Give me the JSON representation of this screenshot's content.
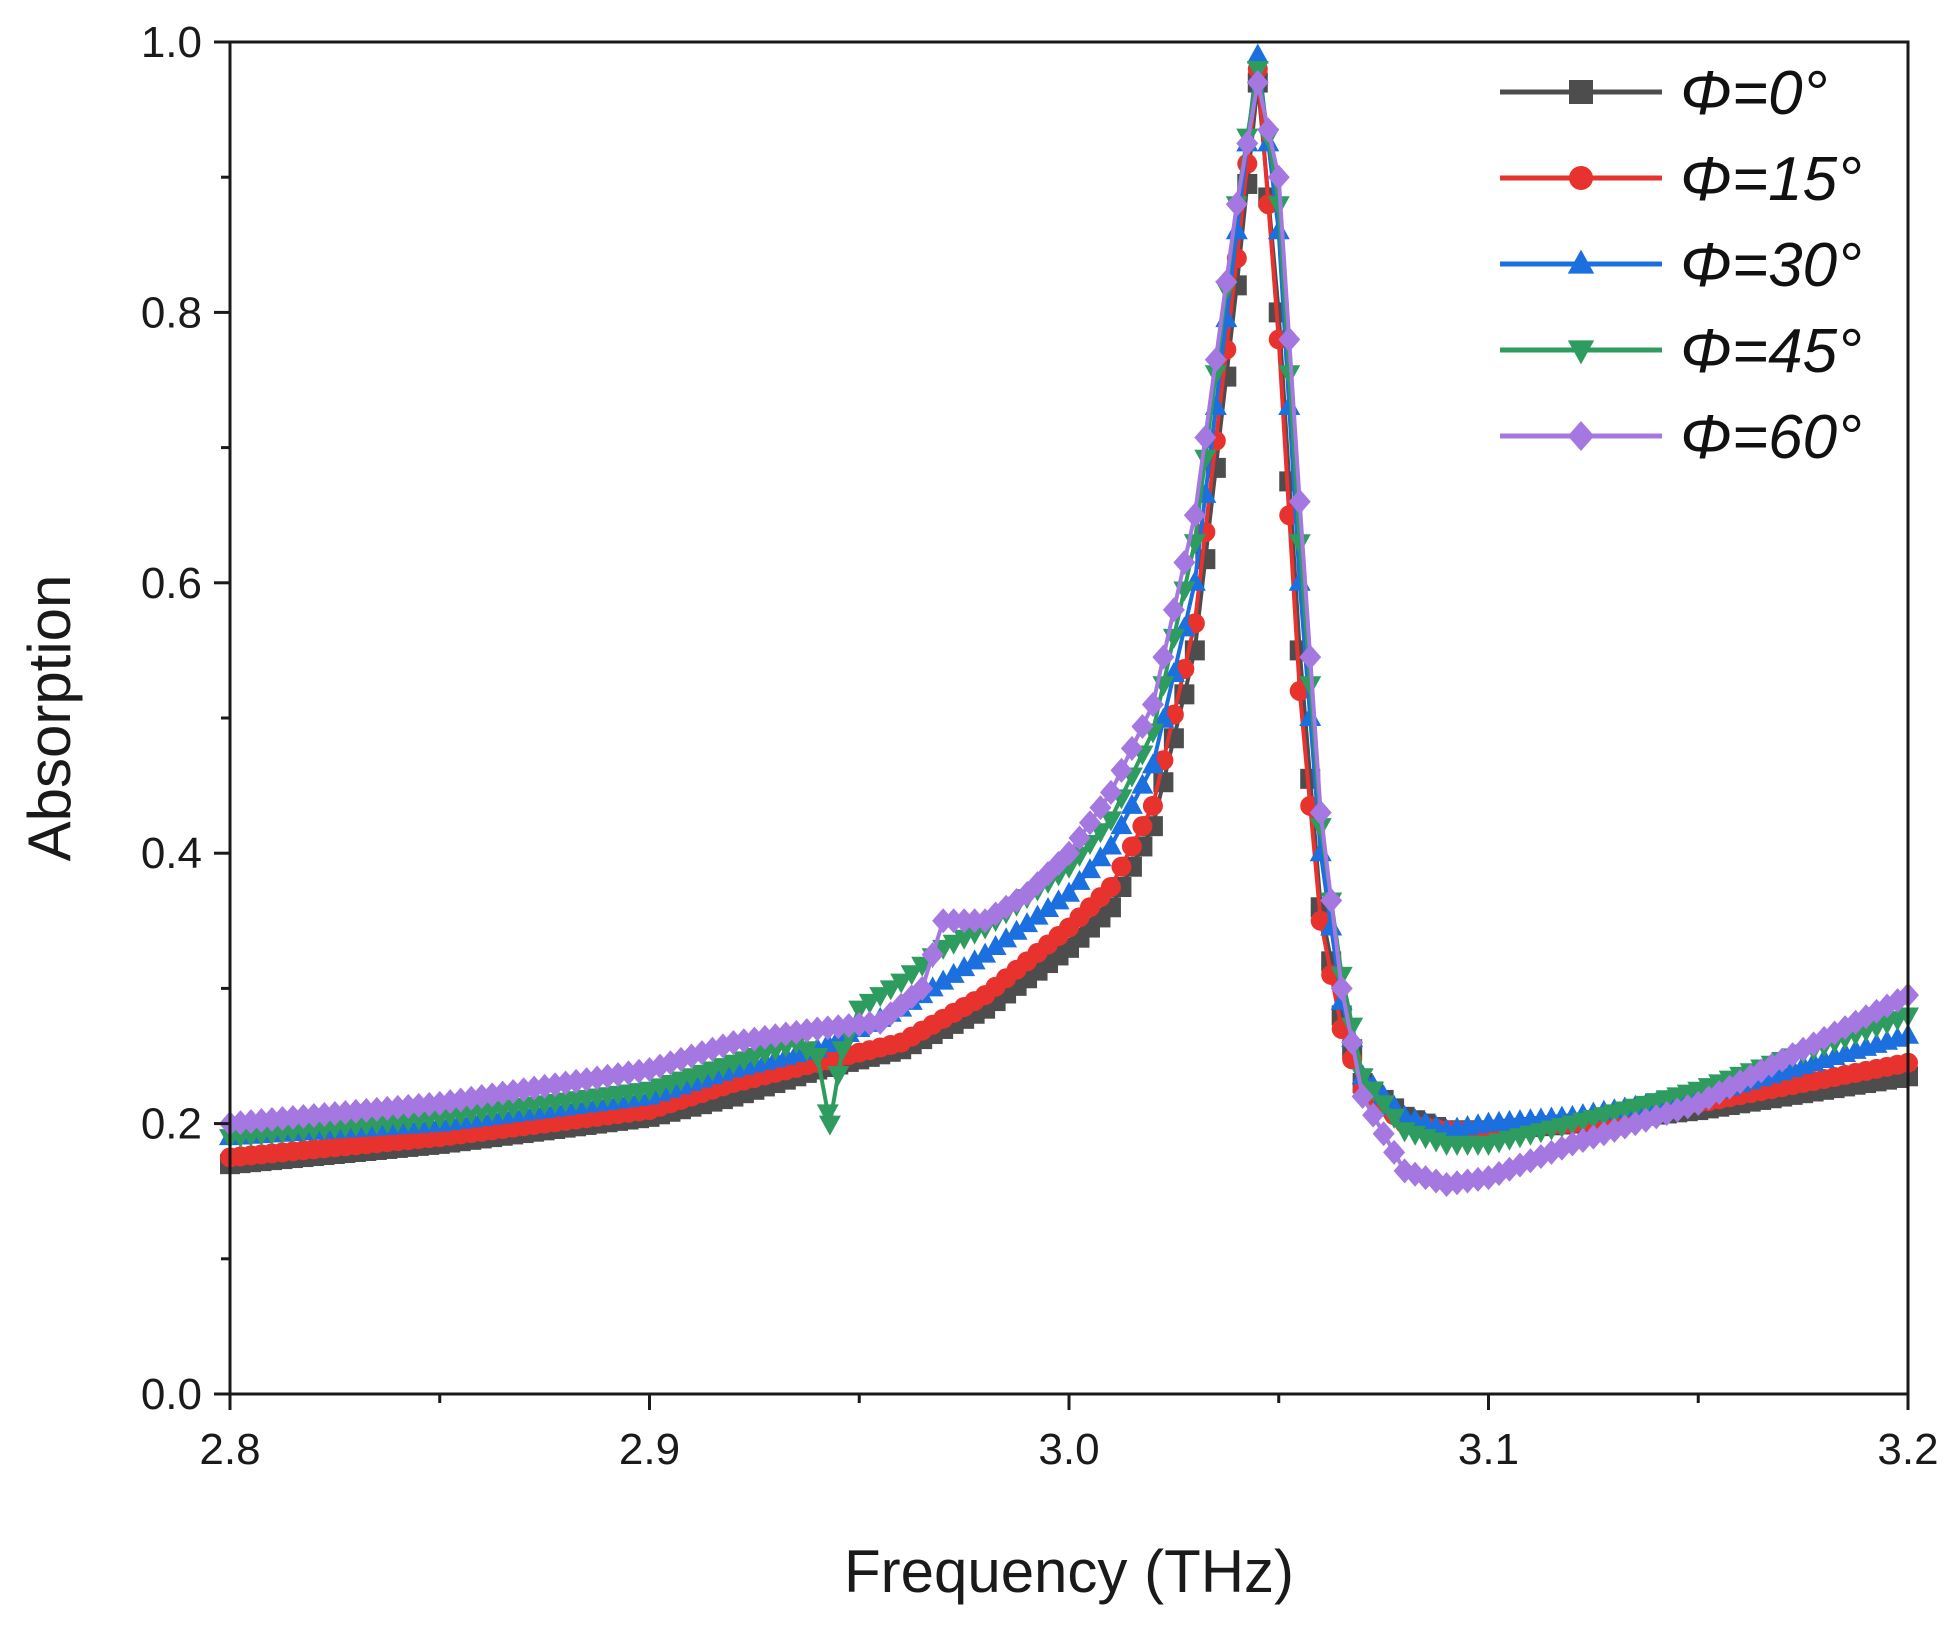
{
  "chart_data": {
    "type": "line",
    "title": "",
    "xlabel": "Frequency (THz)",
    "ylabel": "Absorption",
    "xlim": [
      2.8,
      3.2
    ],
    "ylim": [
      0.0,
      1.0
    ],
    "x_ticks": [
      "2.8",
      "2.9",
      "3.0",
      "3.1",
      "3.2"
    ],
    "y_ticks": [
      "0.0",
      "0.2",
      "0.4",
      "0.6",
      "0.8",
      "1.0"
    ],
    "legend_position": "top-right",
    "series": [
      {
        "name": "Φ=0°",
        "color": "#4d4d4d",
        "marker": "square",
        "points": [
          [
            2.8,
            0.17
          ],
          [
            2.85,
            0.185
          ],
          [
            2.9,
            0.205
          ],
          [
            2.92,
            0.22
          ],
          [
            2.94,
            0.24
          ],
          [
            2.96,
            0.255
          ],
          [
            2.98,
            0.285
          ],
          [
            3.0,
            0.33
          ],
          [
            3.01,
            0.36
          ],
          [
            3.02,
            0.42
          ],
          [
            3.03,
            0.55
          ],
          [
            3.04,
            0.82
          ],
          [
            3.045,
            0.97
          ],
          [
            3.05,
            0.8
          ],
          [
            3.055,
            0.55
          ],
          [
            3.06,
            0.36
          ],
          [
            3.065,
            0.28
          ],
          [
            3.07,
            0.23
          ],
          [
            3.08,
            0.205
          ],
          [
            3.09,
            0.195
          ],
          [
            3.1,
            0.195
          ],
          [
            3.12,
            0.2
          ],
          [
            3.15,
            0.21
          ],
          [
            3.2,
            0.235
          ]
        ]
      },
      {
        "name": "Φ=15°",
        "color": "#e8322e",
        "marker": "circle",
        "points": [
          [
            2.8,
            0.175
          ],
          [
            2.85,
            0.19
          ],
          [
            2.9,
            0.21
          ],
          [
            2.92,
            0.23
          ],
          [
            2.94,
            0.245
          ],
          [
            2.96,
            0.26
          ],
          [
            2.98,
            0.295
          ],
          [
            3.0,
            0.345
          ],
          [
            3.01,
            0.375
          ],
          [
            3.02,
            0.435
          ],
          [
            3.03,
            0.57
          ],
          [
            3.04,
            0.84
          ],
          [
            3.045,
            0.98
          ],
          [
            3.05,
            0.78
          ],
          [
            3.055,
            0.52
          ],
          [
            3.06,
            0.35
          ],
          [
            3.065,
            0.27
          ],
          [
            3.07,
            0.225
          ],
          [
            3.08,
            0.2
          ],
          [
            3.09,
            0.195
          ],
          [
            3.1,
            0.195
          ],
          [
            3.12,
            0.2
          ],
          [
            3.15,
            0.215
          ],
          [
            3.2,
            0.245
          ]
        ]
      },
      {
        "name": "Φ=30°",
        "color": "#1c6fde",
        "marker": "triangle-up",
        "points": [
          [
            2.8,
            0.19
          ],
          [
            2.85,
            0.2
          ],
          [
            2.9,
            0.22
          ],
          [
            2.92,
            0.24
          ],
          [
            2.94,
            0.255
          ],
          [
            2.96,
            0.285
          ],
          [
            2.98,
            0.325
          ],
          [
            3.0,
            0.37
          ],
          [
            3.01,
            0.405
          ],
          [
            3.02,
            0.465
          ],
          [
            3.03,
            0.6
          ],
          [
            3.04,
            0.86
          ],
          [
            3.045,
            0.99
          ],
          [
            3.05,
            0.86
          ],
          [
            3.055,
            0.6
          ],
          [
            3.06,
            0.4
          ],
          [
            3.065,
            0.29
          ],
          [
            3.07,
            0.235
          ],
          [
            3.08,
            0.205
          ],
          [
            3.09,
            0.195
          ],
          [
            3.1,
            0.2
          ],
          [
            3.12,
            0.205
          ],
          [
            3.15,
            0.22
          ],
          [
            3.2,
            0.265
          ]
        ]
      },
      {
        "name": "Φ=45°",
        "color": "#2e9c5e",
        "marker": "triangle-down",
        "points": [
          [
            2.8,
            0.19
          ],
          [
            2.85,
            0.205
          ],
          [
            2.9,
            0.225
          ],
          [
            2.92,
            0.245
          ],
          [
            2.935,
            0.26
          ],
          [
            2.94,
            0.25
          ],
          [
            2.943,
            0.2
          ],
          [
            2.946,
            0.255
          ],
          [
            2.95,
            0.285
          ],
          [
            2.96,
            0.305
          ],
          [
            2.97,
            0.33
          ],
          [
            2.98,
            0.345
          ],
          [
            3.0,
            0.39
          ],
          [
            3.01,
            0.425
          ],
          [
            3.02,
            0.49
          ],
          [
            3.03,
            0.63
          ],
          [
            3.04,
            0.88
          ],
          [
            3.045,
            0.98
          ],
          [
            3.05,
            0.88
          ],
          [
            3.055,
            0.63
          ],
          [
            3.06,
            0.42
          ],
          [
            3.065,
            0.31
          ],
          [
            3.07,
            0.235
          ],
          [
            3.08,
            0.195
          ],
          [
            3.09,
            0.185
          ],
          [
            3.1,
            0.185
          ],
          [
            3.12,
            0.2
          ],
          [
            3.15,
            0.225
          ],
          [
            3.2,
            0.28
          ]
        ]
      },
      {
        "name": "Φ=60°",
        "color": "#a478e0",
        "marker": "diamond",
        "points": [
          [
            2.8,
            0.2
          ],
          [
            2.85,
            0.215
          ],
          [
            2.9,
            0.24
          ],
          [
            2.92,
            0.26
          ],
          [
            2.94,
            0.27
          ],
          [
            2.955,
            0.275
          ],
          [
            2.965,
            0.3
          ],
          [
            2.97,
            0.35
          ],
          [
            2.98,
            0.35
          ],
          [
            2.99,
            0.37
          ],
          [
            3.0,
            0.4
          ],
          [
            3.01,
            0.445
          ],
          [
            3.02,
            0.51
          ],
          [
            3.03,
            0.65
          ],
          [
            3.04,
            0.88
          ],
          [
            3.045,
            0.97
          ],
          [
            3.05,
            0.9
          ],
          [
            3.055,
            0.66
          ],
          [
            3.06,
            0.43
          ],
          [
            3.065,
            0.3
          ],
          [
            3.07,
            0.22
          ],
          [
            3.08,
            0.165
          ],
          [
            3.09,
            0.155
          ],
          [
            3.1,
            0.16
          ],
          [
            3.12,
            0.185
          ],
          [
            3.15,
            0.215
          ],
          [
            3.2,
            0.295
          ]
        ]
      }
    ]
  }
}
